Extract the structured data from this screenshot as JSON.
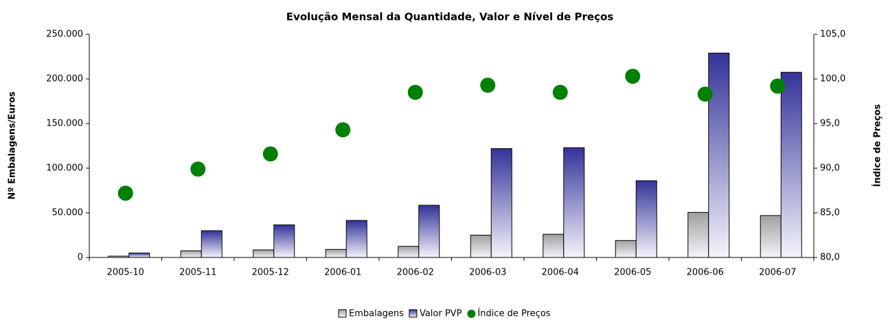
{
  "chart_data": {
    "type": "bar_dot",
    "title": "Evolução Mensal da Quantidade, Valor e Nível de Preços",
    "ylabel": "Nº Embalagens/Euros",
    "y2label": "Índice de Preços",
    "categories": [
      "2005-10",
      "2005-11",
      "2005-12",
      "2006-01",
      "2006-02",
      "2006-03",
      "2006-04",
      "2006-05",
      "2006-06",
      "2006-07"
    ],
    "series": [
      {
        "name": "Embalagens",
        "color": "#a0a0a0",
        "values": [
          1500,
          7500,
          8500,
          9000,
          12500,
          25000,
          26000,
          19000,
          50500,
          47000
        ]
      },
      {
        "name": "Valor PVP",
        "color": "#333399",
        "values": [
          5000,
          30000,
          36500,
          41500,
          58500,
          122000,
          123000,
          86000,
          229000,
          207500
        ]
      },
      {
        "name": "Índice de Preços",
        "color": "#008000",
        "axis": "y2",
        "values": [
          87.2,
          89.9,
          91.6,
          94.3,
          98.5,
          99.3,
          98.5,
          100.3,
          98.3,
          99.2
        ]
      }
    ],
    "ylim": [
      0,
      250000
    ],
    "yticks": [
      0,
      {
        "value": 50000,
        "label": "50.000"
      },
      {
        "value": 100000,
        "label": "100.000"
      },
      {
        "value": 150000,
        "label": "150.000"
      },
      {
        "value": 200000,
        "label": "200.000"
      },
      {
        "value": 250000,
        "label": "250.000"
      }
    ],
    "y2lim": [
      80,
      105
    ],
    "y2ticks": [
      {
        "value": 80,
        "label": "80,0"
      },
      {
        "value": 85,
        "label": "85,0"
      },
      {
        "value": 90,
        "label": "90,0"
      },
      {
        "value": 95,
        "label": "95,0"
      },
      {
        "value": 100,
        "label": "100,0"
      },
      {
        "value": 105,
        "label": "105,0"
      }
    ],
    "grid": false,
    "legend": "bottom"
  }
}
